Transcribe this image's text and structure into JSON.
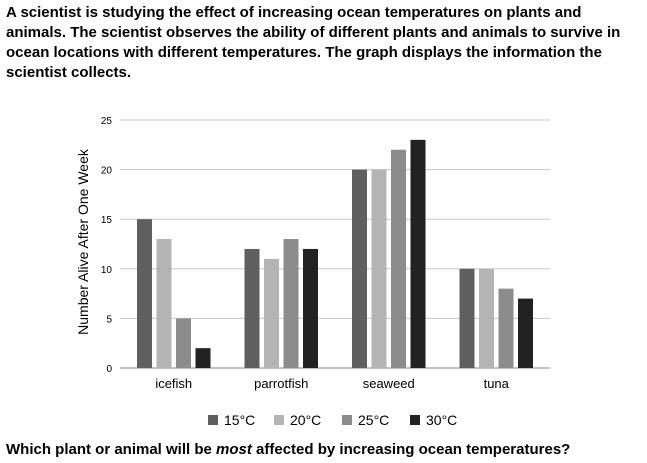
{
  "question": {
    "intro": "A scientist is studying the effect of increasing ocean temperatures on plants and animals. The scientist observes the ability of different plants and animals to survive in ocean locations with different temperatures. The graph displays the information the scientist collects.",
    "prompt_before": "Which plant or animal will be ",
    "prompt_emphasis": "most",
    "prompt_after": " affected by increasing ocean temperatures?"
  },
  "chart_data": {
    "type": "bar",
    "title": "",
    "xlabel": "",
    "ylabel": "Number Alive After One Week",
    "ylim": [
      0,
      25
    ],
    "yticks": [
      0,
      5,
      10,
      15,
      20,
      25
    ],
    "grid": true,
    "legend_position": "bottom",
    "categories": [
      "icefish",
      "parrotfish",
      "seaweed",
      "tuna"
    ],
    "series": [
      {
        "name": "15°C",
        "color": "#5f5f5f",
        "values": [
          15,
          12,
          20,
          10
        ]
      },
      {
        "name": "20°C",
        "color": "#b4b4b4",
        "values": [
          13,
          11,
          20,
          10
        ]
      },
      {
        "name": "25°C",
        "color": "#8c8c8c",
        "values": [
          5,
          13,
          22,
          8
        ]
      },
      {
        "name": "30°C",
        "color": "#222222",
        "values": [
          2,
          12,
          23,
          7
        ]
      }
    ]
  }
}
